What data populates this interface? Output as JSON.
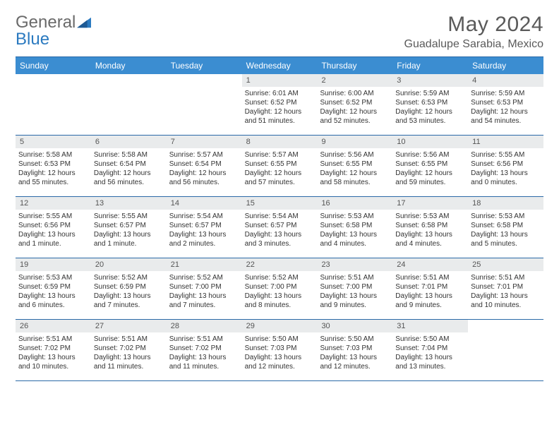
{
  "brand": {
    "part1": "General",
    "part2": "Blue"
  },
  "title": "May 2024",
  "location": "Guadalupe Sarabia, Mexico",
  "colors": {
    "headerBar": "#3b8dd1",
    "rule": "#2b6aa8",
    "dayBar": "#e9ebec",
    "text": "#333",
    "muted": "#5a5a5a"
  },
  "weekdays": [
    "Sunday",
    "Monday",
    "Tuesday",
    "Wednesday",
    "Thursday",
    "Friday",
    "Saturday"
  ],
  "weeks": [
    [
      {
        "n": "",
        "empty": true
      },
      {
        "n": "",
        "empty": true
      },
      {
        "n": "",
        "empty": true
      },
      {
        "n": "1",
        "sr": "6:01 AM",
        "ss": "6:52 PM",
        "dl": "12 hours and 51 minutes."
      },
      {
        "n": "2",
        "sr": "6:00 AM",
        "ss": "6:52 PM",
        "dl": "12 hours and 52 minutes."
      },
      {
        "n": "3",
        "sr": "5:59 AM",
        "ss": "6:53 PM",
        "dl": "12 hours and 53 minutes."
      },
      {
        "n": "4",
        "sr": "5:59 AM",
        "ss": "6:53 PM",
        "dl": "12 hours and 54 minutes."
      }
    ],
    [
      {
        "n": "5",
        "sr": "5:58 AM",
        "ss": "6:53 PM",
        "dl": "12 hours and 55 minutes."
      },
      {
        "n": "6",
        "sr": "5:58 AM",
        "ss": "6:54 PM",
        "dl": "12 hours and 56 minutes."
      },
      {
        "n": "7",
        "sr": "5:57 AM",
        "ss": "6:54 PM",
        "dl": "12 hours and 56 minutes."
      },
      {
        "n": "8",
        "sr": "5:57 AM",
        "ss": "6:55 PM",
        "dl": "12 hours and 57 minutes."
      },
      {
        "n": "9",
        "sr": "5:56 AM",
        "ss": "6:55 PM",
        "dl": "12 hours and 58 minutes."
      },
      {
        "n": "10",
        "sr": "5:56 AM",
        "ss": "6:55 PM",
        "dl": "12 hours and 59 minutes."
      },
      {
        "n": "11",
        "sr": "5:55 AM",
        "ss": "6:56 PM",
        "dl": "13 hours and 0 minutes."
      }
    ],
    [
      {
        "n": "12",
        "sr": "5:55 AM",
        "ss": "6:56 PM",
        "dl": "13 hours and 1 minute."
      },
      {
        "n": "13",
        "sr": "5:55 AM",
        "ss": "6:57 PM",
        "dl": "13 hours and 1 minute."
      },
      {
        "n": "14",
        "sr": "5:54 AM",
        "ss": "6:57 PM",
        "dl": "13 hours and 2 minutes."
      },
      {
        "n": "15",
        "sr": "5:54 AM",
        "ss": "6:57 PM",
        "dl": "13 hours and 3 minutes."
      },
      {
        "n": "16",
        "sr": "5:53 AM",
        "ss": "6:58 PM",
        "dl": "13 hours and 4 minutes."
      },
      {
        "n": "17",
        "sr": "5:53 AM",
        "ss": "6:58 PM",
        "dl": "13 hours and 4 minutes."
      },
      {
        "n": "18",
        "sr": "5:53 AM",
        "ss": "6:58 PM",
        "dl": "13 hours and 5 minutes."
      }
    ],
    [
      {
        "n": "19",
        "sr": "5:53 AM",
        "ss": "6:59 PM",
        "dl": "13 hours and 6 minutes."
      },
      {
        "n": "20",
        "sr": "5:52 AM",
        "ss": "6:59 PM",
        "dl": "13 hours and 7 minutes."
      },
      {
        "n": "21",
        "sr": "5:52 AM",
        "ss": "7:00 PM",
        "dl": "13 hours and 7 minutes."
      },
      {
        "n": "22",
        "sr": "5:52 AM",
        "ss": "7:00 PM",
        "dl": "13 hours and 8 minutes."
      },
      {
        "n": "23",
        "sr": "5:51 AM",
        "ss": "7:00 PM",
        "dl": "13 hours and 9 minutes."
      },
      {
        "n": "24",
        "sr": "5:51 AM",
        "ss": "7:01 PM",
        "dl": "13 hours and 9 minutes."
      },
      {
        "n": "25",
        "sr": "5:51 AM",
        "ss": "7:01 PM",
        "dl": "13 hours and 10 minutes."
      }
    ],
    [
      {
        "n": "26",
        "sr": "5:51 AM",
        "ss": "7:02 PM",
        "dl": "13 hours and 10 minutes."
      },
      {
        "n": "27",
        "sr": "5:51 AM",
        "ss": "7:02 PM",
        "dl": "13 hours and 11 minutes."
      },
      {
        "n": "28",
        "sr": "5:51 AM",
        "ss": "7:02 PM",
        "dl": "13 hours and 11 minutes."
      },
      {
        "n": "29",
        "sr": "5:50 AM",
        "ss": "7:03 PM",
        "dl": "13 hours and 12 minutes."
      },
      {
        "n": "30",
        "sr": "5:50 AM",
        "ss": "7:03 PM",
        "dl": "13 hours and 12 minutes."
      },
      {
        "n": "31",
        "sr": "5:50 AM",
        "ss": "7:04 PM",
        "dl": "13 hours and 13 minutes."
      },
      {
        "n": "",
        "empty": true
      }
    ]
  ],
  "labels": {
    "sunrise": "Sunrise: ",
    "sunset": "Sunset: ",
    "daylight": "Daylight: "
  }
}
